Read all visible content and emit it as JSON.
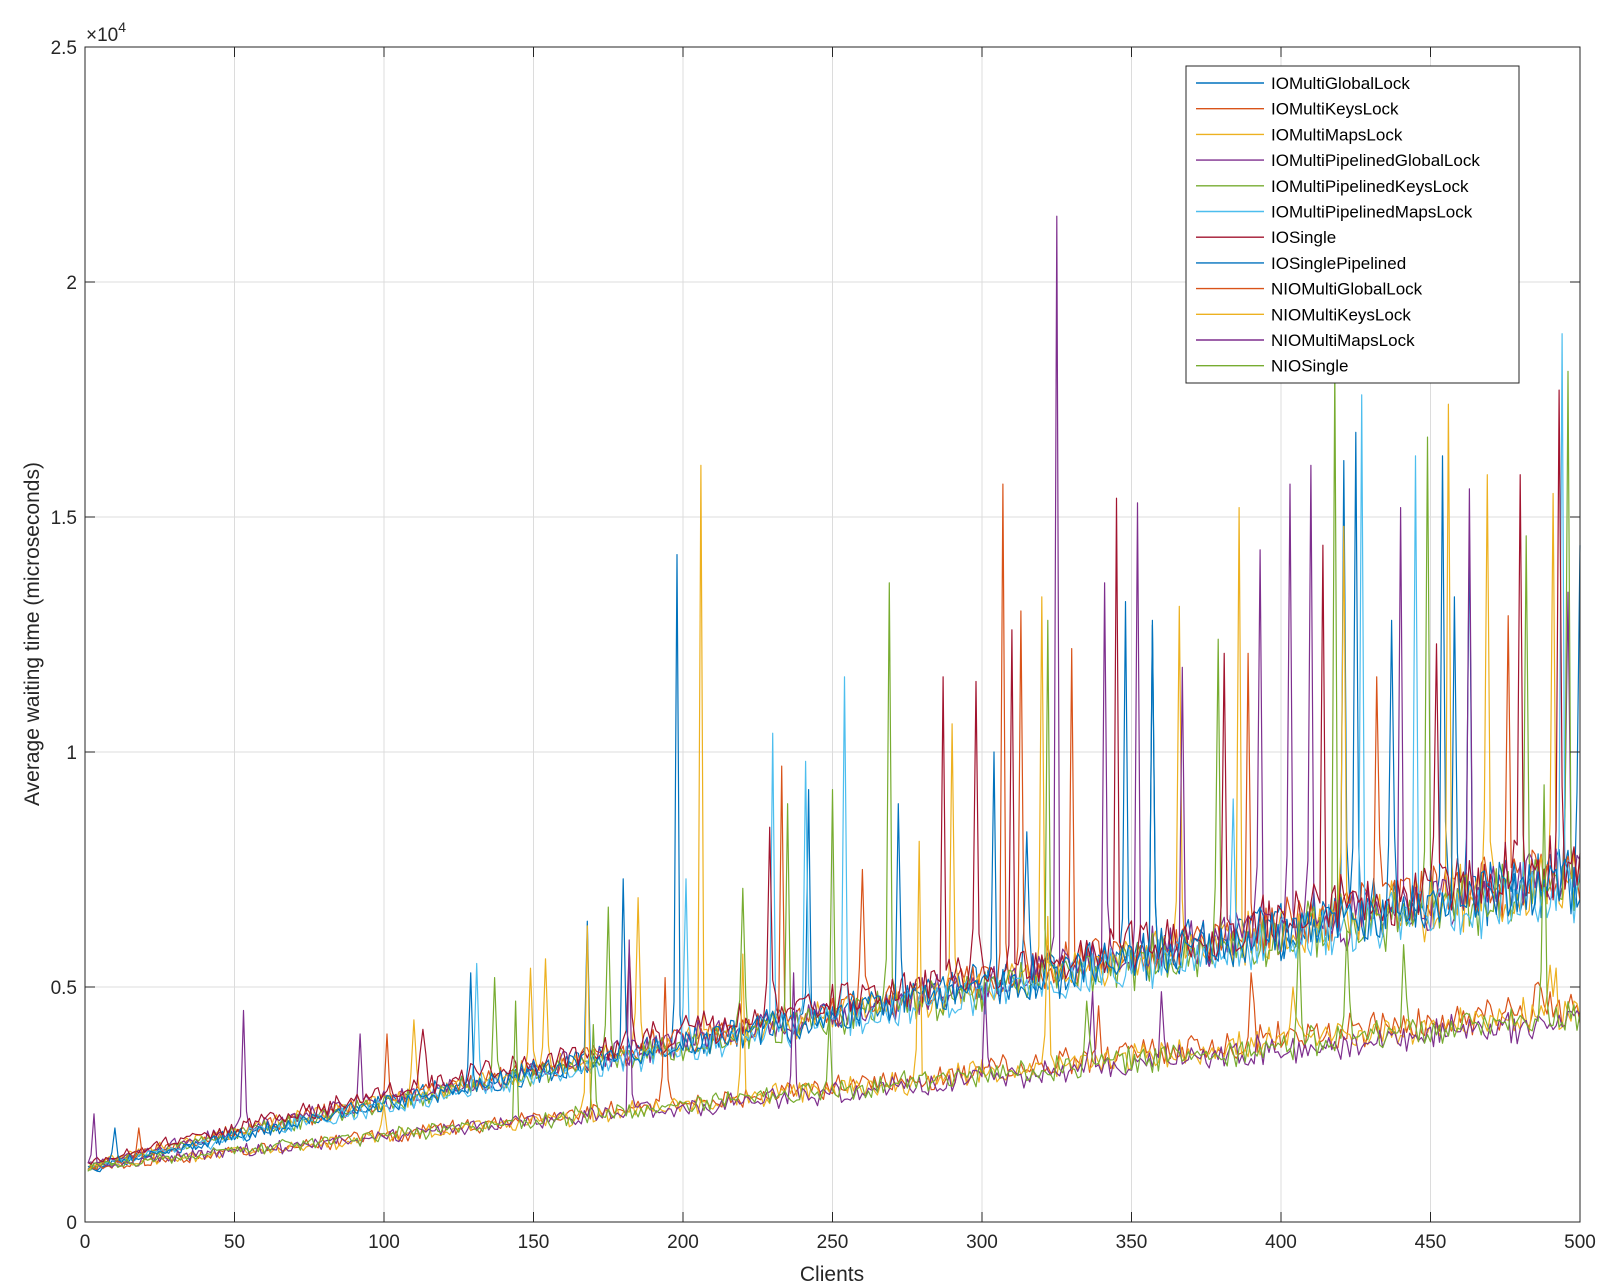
{
  "chart_data": {
    "type": "line",
    "title": "",
    "xlabel": "Clients",
    "ylabel": "Average waiting time (microseconds)",
    "xlim": [
      0,
      500
    ],
    "ylim": [
      0,
      25000
    ],
    "y_exponent_label": "×10",
    "y_exponent_power": "4",
    "xticks": [
      "0",
      "50",
      "100",
      "150",
      "200",
      "250",
      "300",
      "350",
      "400",
      "450",
      "500"
    ],
    "yticks": [
      "0",
      "0.5",
      "1",
      "1.5",
      "2",
      "2.5"
    ],
    "grid": true,
    "legend_position": "top-right",
    "series": [
      {
        "name": "IOMultiGlobalLock",
        "color": "#0072BD",
        "group": "io",
        "start": 1100,
        "end": 7400,
        "spikes": [
          [
            198,
            14200
          ],
          [
            242,
            9200
          ],
          [
            315,
            8300
          ],
          [
            348,
            13200
          ],
          [
            357,
            12800
          ],
          [
            421,
            16200
          ],
          [
            425,
            16800
          ],
          [
            454,
            16300
          ],
          [
            463,
            14600
          ],
          [
            500,
            14400
          ]
        ]
      },
      {
        "name": "IOMultiKeysLock",
        "color": "#D95319",
        "group": "io",
        "start": 1150,
        "end": 7500,
        "spikes": [
          [
            101,
            4000
          ],
          [
            233,
            9700
          ],
          [
            260,
            7500
          ],
          [
            307,
            15700
          ],
          [
            313,
            13000
          ],
          [
            330,
            12200
          ],
          [
            389,
            12100
          ],
          [
            432,
            11600
          ],
          [
            476,
            12900
          ]
        ]
      },
      {
        "name": "IOMultiMapsLock",
        "color": "#EDB120",
        "group": "io",
        "start": 1200,
        "end": 7300,
        "spikes": [
          [
            110,
            4300
          ],
          [
            149,
            5400
          ],
          [
            154,
            5600
          ],
          [
            185,
            6900
          ],
          [
            206,
            16100
          ],
          [
            290,
            10600
          ],
          [
            320,
            13300
          ],
          [
            366,
            13100
          ],
          [
            386,
            15200
          ],
          [
            421,
            14800
          ],
          [
            456,
            17400
          ],
          [
            469,
            15900
          ],
          [
            491,
            15500
          ]
        ]
      },
      {
        "name": "IOMultiPipelinedGlobalLock",
        "color": "#7E2F8E",
        "group": "io",
        "start": 1200,
        "end": 7400,
        "spikes": [
          [
            53,
            4500
          ],
          [
            92,
            4000
          ],
          [
            325,
            21400
          ],
          [
            341,
            13600
          ],
          [
            352,
            15300
          ],
          [
            367,
            11800
          ],
          [
            393,
            14300
          ],
          [
            403,
            15700
          ],
          [
            410,
            16100
          ],
          [
            440,
            15200
          ],
          [
            463,
            15600
          ],
          [
            496,
            13400
          ]
        ]
      },
      {
        "name": "IOMultiPipelinedKeysLock",
        "color": "#77AC30",
        "group": "io",
        "start": 1150,
        "end": 7200,
        "spikes": [
          [
            137,
            5200
          ],
          [
            175,
            6700
          ],
          [
            220,
            7100
          ],
          [
            235,
            8900
          ],
          [
            250,
            9200
          ],
          [
            269,
            13600
          ],
          [
            322,
            12800
          ],
          [
            379,
            12400
          ],
          [
            418,
            18200
          ],
          [
            449,
            16700
          ],
          [
            482,
            14600
          ],
          [
            496,
            18100
          ]
        ]
      },
      {
        "name": "IOMultiPipelinedMapsLock",
        "color": "#4DBEEE",
        "group": "io",
        "start": 1100,
        "end": 7100,
        "spikes": [
          [
            131,
            5500
          ],
          [
            201,
            7300
          ],
          [
            230,
            10400
          ],
          [
            241,
            9800
          ],
          [
            254,
            11600
          ],
          [
            384,
            9000
          ],
          [
            427,
            17600
          ],
          [
            445,
            16300
          ],
          [
            494,
            18900
          ]
        ]
      },
      {
        "name": "IOSingle",
        "color": "#A2142F",
        "group": "io",
        "start": 1250,
        "end": 7700,
        "spikes": [
          [
            113,
            4100
          ],
          [
            182,
            5800
          ],
          [
            229,
            8400
          ],
          [
            287,
            11600
          ],
          [
            298,
            11500
          ],
          [
            310,
            12600
          ],
          [
            345,
            15400
          ],
          [
            381,
            12100
          ],
          [
            414,
            14400
          ],
          [
            452,
            12300
          ],
          [
            480,
            15900
          ],
          [
            493,
            17700
          ]
        ]
      },
      {
        "name": "IOSinglePipelined",
        "color": "#0072BD",
        "group": "io",
        "start": 1100,
        "end": 7300,
        "spikes": [
          [
            10,
            2000
          ],
          [
            129,
            5300
          ],
          [
            168,
            6400
          ],
          [
            180,
            7300
          ],
          [
            272,
            8900
          ],
          [
            304,
            10000
          ],
          [
            357,
            12700
          ],
          [
            437,
            12800
          ],
          [
            458,
            13300
          ]
        ]
      },
      {
        "name": "NIOMultiGlobalLock",
        "color": "#D95319",
        "group": "nio",
        "start": 1150,
        "end": 4600,
        "spikes": [
          [
            18,
            2000
          ],
          [
            194,
            5200
          ],
          [
            339,
            4600
          ],
          [
            390,
            5300
          ],
          [
            486,
            5100
          ]
        ]
      },
      {
        "name": "NIOMultiKeysLock",
        "color": "#EDB120",
        "group": "nio",
        "start": 1150,
        "end": 4500,
        "spikes": [
          [
            100,
            2500
          ],
          [
            168,
            6300
          ],
          [
            220,
            5700
          ],
          [
            279,
            8100
          ],
          [
            322,
            6500
          ],
          [
            404,
            5000
          ],
          [
            491,
            4800
          ]
        ]
      },
      {
        "name": "NIOMultiMapsLock",
        "color": "#7E2F8E",
        "group": "nio",
        "start": 1200,
        "end": 4300,
        "spikes": [
          [
            3,
            2300
          ],
          [
            182,
            6000
          ],
          [
            237,
            5300
          ],
          [
            301,
            5000
          ],
          [
            337,
            4900
          ],
          [
            360,
            4900
          ]
        ]
      },
      {
        "name": "NIOSingle",
        "color": "#77AC30",
        "group": "nio",
        "start": 1200,
        "end": 4400,
        "spikes": [
          [
            144,
            4700
          ],
          [
            170,
            4200
          ],
          [
            249,
            4400
          ],
          [
            335,
            4700
          ],
          [
            406,
            6300
          ],
          [
            422,
            6200
          ],
          [
            441,
            5900
          ],
          [
            488,
            9300
          ]
        ]
      }
    ]
  }
}
